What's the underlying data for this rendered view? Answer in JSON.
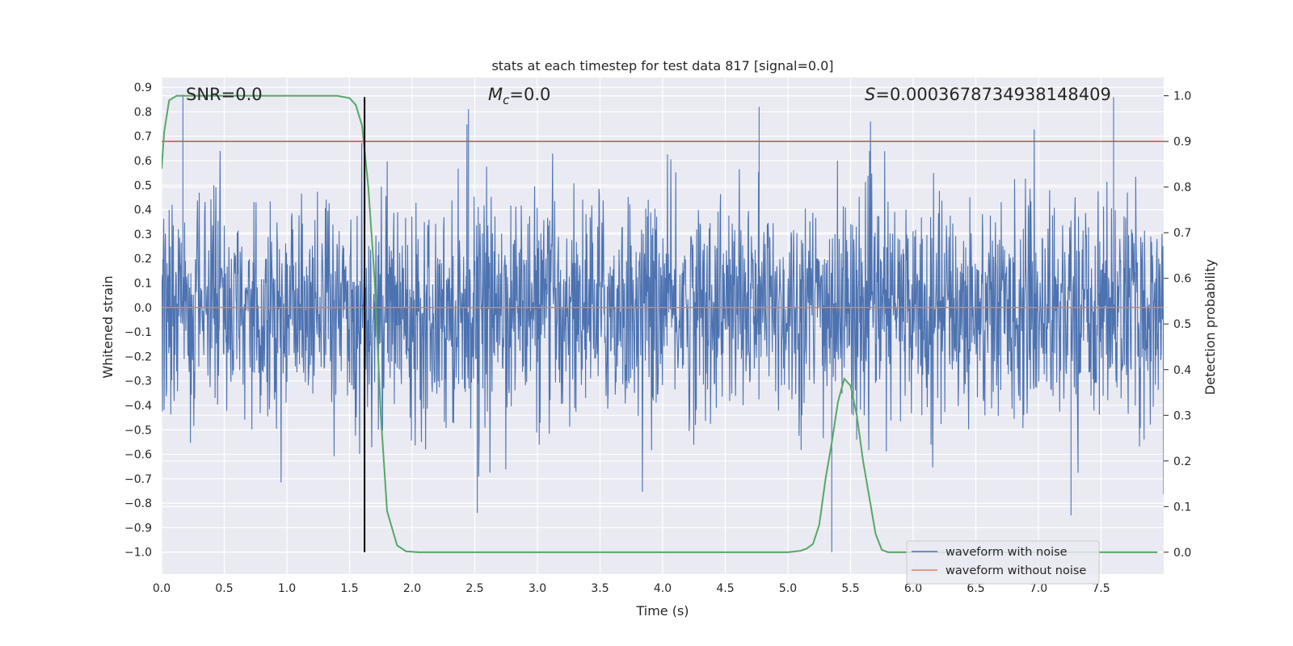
{
  "chart_data": {
    "type": "line",
    "title": "stats at each timestep for test data 817 [signal=0.0]",
    "xlabel": "Time (s)",
    "ylabel": "Whitened strain",
    "y2label": "Detection probability",
    "xlim": [
      0.0,
      8.0
    ],
    "ylim": [
      -1.09,
      0.94
    ],
    "y2lim": [
      -0.048,
      1.04
    ],
    "xticks": [
      "0.0",
      "0.5",
      "1.0",
      "1.5",
      "2.0",
      "2.5",
      "3.0",
      "3.5",
      "4.0",
      "4.5",
      "5.0",
      "5.5",
      "6.0",
      "6.5",
      "7.0",
      "7.5"
    ],
    "yticks": [
      "0.9",
      "0.8",
      "0.7",
      "0.6",
      "0.5",
      "0.4",
      "0.3",
      "0.2",
      "0.1",
      "0.0",
      "-0.1",
      "-0.2",
      "-0.3",
      "-0.4",
      "-0.5",
      "-0.6",
      "-0.7",
      "-0.8",
      "-0.9",
      "-1.0"
    ],
    "y2ticks": [
      "1.0",
      "0.9",
      "0.8",
      "0.7",
      "0.6",
      "0.5",
      "0.4",
      "0.3",
      "0.2",
      "0.1",
      "0.0"
    ],
    "grid": true,
    "legend_position": "lower-right",
    "annotations": {
      "snr_prefix": "SNR=",
      "snr_value": "0.0",
      "mc_symbol": "M",
      "mc_subscript": "c",
      "mc_value": "=0.0",
      "s_symbol": "S",
      "s_value": "=0.0003678734938148409"
    },
    "series": [
      {
        "name": "waveform with noise",
        "color": "#4c72b0",
        "axis": "left",
        "description_range": [
          -1.0,
          0.86
        ],
        "notable_peaks": [
          [
            0.17,
            0.87
          ],
          [
            2.45,
            0.81
          ],
          [
            4.77,
            0.82
          ],
          [
            7.6,
            0.86
          ],
          [
            5.35,
            -1.0
          ],
          [
            2.52,
            -0.84
          ],
          [
            7.26,
            -0.85
          ]
        ]
      },
      {
        "name": "waveform without noise",
        "color": "#dd8452",
        "axis": "left",
        "constant_value": 0.0
      },
      {
        "name": "",
        "color": "#55a868",
        "axis": "right",
        "x": [
          0.0,
          0.02,
          0.06,
          0.12,
          0.2,
          0.4,
          0.8,
          1.2,
          1.4,
          1.5,
          1.55,
          1.6,
          1.65,
          1.7,
          1.75,
          1.8,
          1.88,
          1.95,
          2.05,
          2.5,
          3.0,
          4.0,
          5.0,
          5.1,
          5.15,
          5.2,
          5.25,
          5.3,
          5.35,
          5.4,
          5.45,
          5.5,
          5.55,
          5.6,
          5.65,
          5.7,
          5.75,
          5.8,
          6.0,
          7.0,
          7.95
        ],
        "y": [
          0.84,
          0.92,
          0.99,
          1.0,
          1.0,
          1.0,
          1.0,
          1.0,
          1.0,
          0.995,
          0.98,
          0.935,
          0.8,
          0.6,
          0.3,
          0.09,
          0.015,
          0.002,
          0.0,
          0.0,
          0.0,
          0.0,
          0.0,
          0.003,
          0.008,
          0.018,
          0.06,
          0.16,
          0.24,
          0.33,
          0.38,
          0.365,
          0.3,
          0.2,
          0.12,
          0.04,
          0.005,
          0.0,
          0.0,
          0.0,
          0.0
        ]
      }
    ],
    "horizontal_lines": [
      {
        "name": "threshold",
        "color": "#c44e52",
        "axis": "right",
        "value": 0.9
      }
    ],
    "vertical_lines": [
      {
        "name": "detection-time",
        "color": "#000000",
        "x": 1.62,
        "y_from": -1.0,
        "y_to": 0.86
      }
    ]
  }
}
